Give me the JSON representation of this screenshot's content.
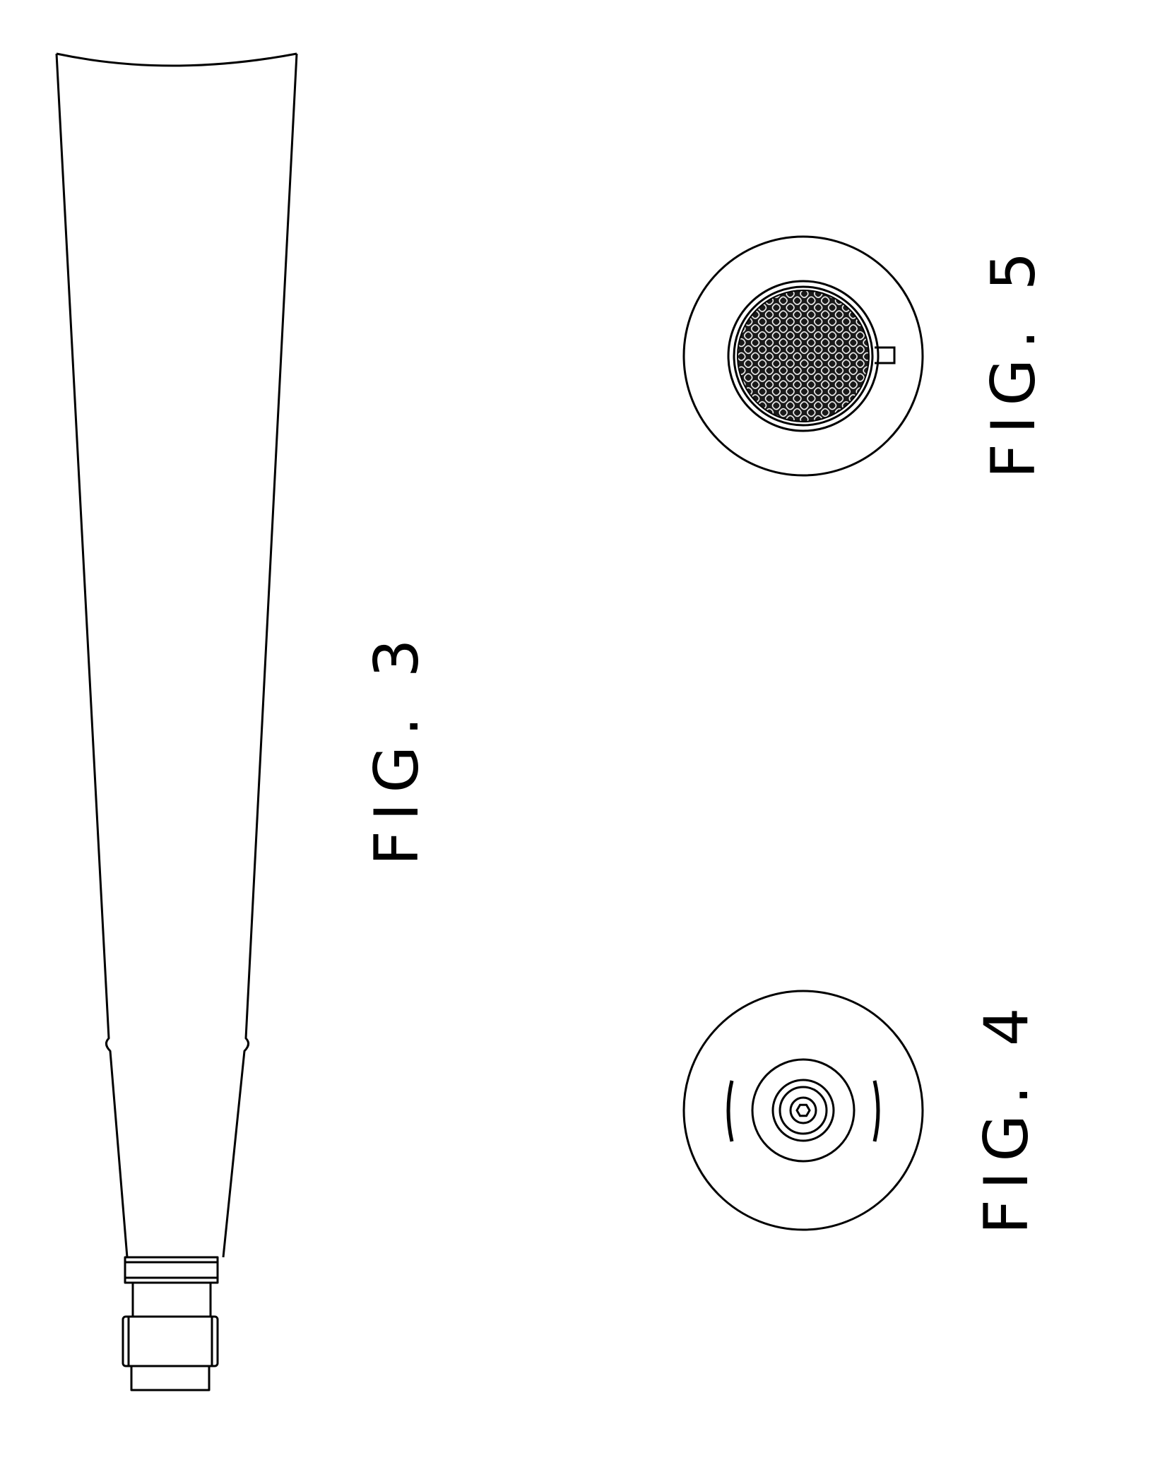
{
  "figures": {
    "fig3": {
      "label": "FIG. 3"
    },
    "fig4": {
      "label": "FIG. 4"
    },
    "fig5": {
      "label": "FIG. 5"
    }
  },
  "colors": {
    "ink": "#000000",
    "paper": "#ffffff",
    "mesh_fill": "#1a1a1a"
  }
}
